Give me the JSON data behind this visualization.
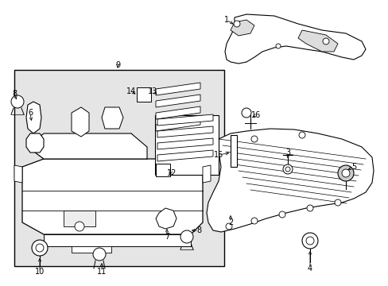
{
  "bg_color": "#ffffff",
  "box_fill": "#e8e8e8",
  "line_color": "#000000",
  "font_size": 7.0,
  "fig_w": 4.89,
  "fig_h": 3.6,
  "xlim": [
    0,
    489
  ],
  "ylim": [
    0,
    360
  ]
}
